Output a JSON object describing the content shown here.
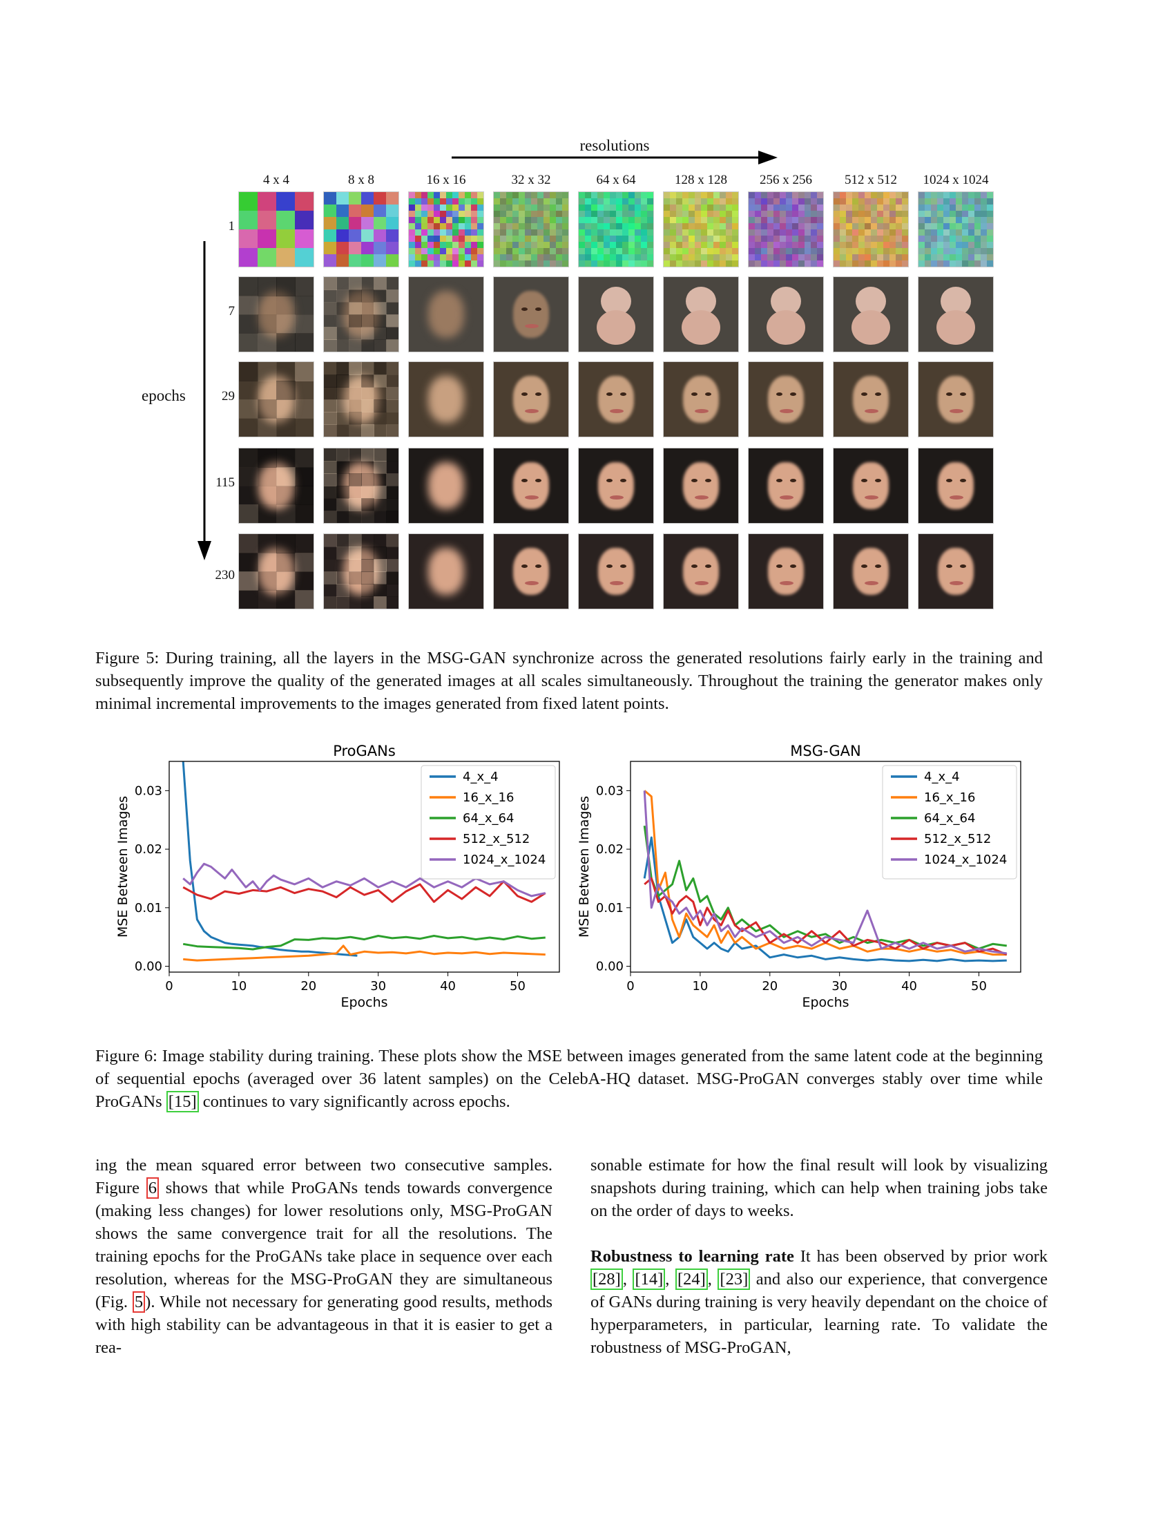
{
  "figure5": {
    "top_label": "resolutions",
    "side_label": "epochs",
    "columns": [
      "4 x 4",
      "8 x 8",
      "16 x 16",
      "32 x 32",
      "64 x 64",
      "128 x 128",
      "256 x 256",
      "512 x 512",
      "1024 x 1024"
    ],
    "rows": [
      "1",
      "7",
      "29",
      "115",
      "230"
    ],
    "caption": "Figure 5: During training, all the layers in the MSG-GAN synchronize across the generated resolutions fairly early in the training and subsequently improve the quality of the generated images at all scales simultaneously. Throughout the training the generator makes only minimal incremental improvements to the images generated from fixed latent points."
  },
  "chart_data": [
    {
      "type": "line",
      "title": "ProGANs",
      "xlabel": "Epochs",
      "ylabel": "MSE Between Images",
      "xlim": [
        0,
        56
      ],
      "ylim": [
        -0.001,
        0.035
      ],
      "xticks": [
        0,
        10,
        20,
        30,
        40,
        50
      ],
      "yticks": [
        0.0,
        0.01,
        0.02,
        0.03
      ],
      "ytick_labels": [
        "0.00",
        "0.01",
        "0.02",
        "0.03"
      ],
      "legend_position": "top-right",
      "series": [
        {
          "name": "4_x_4",
          "color": "#1f77b4",
          "x": [
            2,
            3,
            4,
            5,
            6,
            7,
            8,
            9,
            10,
            11,
            12,
            13,
            14,
            15,
            16,
            17,
            18,
            19,
            20,
            21,
            22,
            23,
            24,
            25,
            26,
            27
          ],
          "y": [
            0.035,
            0.018,
            0.008,
            0.006,
            0.005,
            0.0045,
            0.004,
            0.0038,
            0.0037,
            0.0036,
            0.0035,
            0.0033,
            0.0032,
            0.003,
            0.0028,
            0.0027,
            0.0026,
            0.0025,
            0.0025,
            0.0024,
            0.0023,
            0.0022,
            0.0021,
            0.002,
            0.0019,
            0.0018
          ]
        },
        {
          "name": "16_x_16",
          "color": "#ff7f0e",
          "x": [
            2,
            4,
            6,
            8,
            10,
            12,
            14,
            16,
            18,
            20,
            22,
            24,
            25,
            26,
            28,
            30,
            32,
            34,
            36,
            38,
            40,
            42,
            44,
            46,
            48,
            50,
            52,
            54
          ],
          "y": [
            0.0012,
            0.001,
            0.0011,
            0.0012,
            0.0013,
            0.0014,
            0.0015,
            0.0016,
            0.0017,
            0.0018,
            0.002,
            0.0022,
            0.0035,
            0.002,
            0.0025,
            0.0023,
            0.0024,
            0.0022,
            0.0025,
            0.0021,
            0.0023,
            0.0022,
            0.0024,
            0.0021,
            0.0023,
            0.0022,
            0.0021,
            0.002
          ]
        },
        {
          "name": "64_x_64",
          "color": "#2ca02c",
          "x": [
            2,
            4,
            6,
            8,
            10,
            12,
            14,
            16,
            18,
            20,
            22,
            24,
            26,
            28,
            30,
            32,
            34,
            36,
            38,
            40,
            42,
            44,
            46,
            48,
            50,
            52,
            54
          ],
          "y": [
            0.0038,
            0.0034,
            0.0033,
            0.0032,
            0.0031,
            0.0029,
            0.0033,
            0.0035,
            0.0046,
            0.0045,
            0.0048,
            0.0047,
            0.005,
            0.0046,
            0.0052,
            0.0048,
            0.005,
            0.0047,
            0.0052,
            0.0048,
            0.005,
            0.0046,
            0.0049,
            0.0046,
            0.0051,
            0.0047,
            0.0049
          ]
        },
        {
          "name": "512_x_512",
          "color": "#d62728",
          "x": [
            2,
            4,
            6,
            8,
            10,
            12,
            14,
            16,
            18,
            20,
            22,
            24,
            26,
            28,
            30,
            32,
            34,
            36,
            38,
            40,
            42,
            44,
            46,
            48,
            50,
            52,
            54
          ],
          "y": [
            0.0135,
            0.0122,
            0.0115,
            0.0128,
            0.0124,
            0.013,
            0.0128,
            0.0135,
            0.0125,
            0.0132,
            0.0128,
            0.0118,
            0.0135,
            0.0122,
            0.013,
            0.011,
            0.0128,
            0.014,
            0.011,
            0.013,
            0.0115,
            0.0135,
            0.012,
            0.0145,
            0.012,
            0.011,
            0.0125
          ]
        },
        {
          "name": "1024_x_1024",
          "color": "#9467bd",
          "x": [
            2,
            3,
            4,
            5,
            6,
            7,
            8,
            9,
            10,
            11,
            12,
            13,
            14,
            15,
            16,
            18,
            20,
            22,
            24,
            26,
            28,
            30,
            32,
            34,
            36,
            38,
            40,
            42,
            44,
            46,
            48,
            50,
            52,
            54
          ],
          "y": [
            0.015,
            0.014,
            0.016,
            0.0175,
            0.017,
            0.016,
            0.015,
            0.0165,
            0.015,
            0.0135,
            0.0145,
            0.013,
            0.0145,
            0.0155,
            0.0148,
            0.014,
            0.015,
            0.0135,
            0.0145,
            0.0138,
            0.015,
            0.0135,
            0.0145,
            0.0135,
            0.015,
            0.0135,
            0.0145,
            0.0135,
            0.015,
            0.014,
            0.0145,
            0.013,
            0.012,
            0.0125
          ]
        }
      ]
    },
    {
      "type": "line",
      "title": "MSG-GAN",
      "xlabel": "Epochs",
      "ylabel": "MSE Between Images",
      "xlim": [
        0,
        56
      ],
      "ylim": [
        -0.001,
        0.035
      ],
      "xticks": [
        0,
        10,
        20,
        30,
        40,
        50
      ],
      "yticks": [
        0.0,
        0.01,
        0.02,
        0.03
      ],
      "ytick_labels": [
        "0.00",
        "0.01",
        "0.02",
        "0.03"
      ],
      "legend_position": "top-right",
      "series": [
        {
          "name": "4_x_4",
          "color": "#1f77b4",
          "x": [
            2,
            3,
            4,
            5,
            6,
            7,
            8,
            9,
            10,
            11,
            12,
            13,
            14,
            15,
            16,
            18,
            20,
            22,
            24,
            26,
            28,
            30,
            32,
            34,
            36,
            38,
            40,
            42,
            44,
            46,
            48,
            50,
            52,
            54
          ],
          "y": [
            0.015,
            0.022,
            0.012,
            0.008,
            0.004,
            0.005,
            0.008,
            0.005,
            0.004,
            0.003,
            0.004,
            0.003,
            0.0025,
            0.004,
            0.003,
            0.0035,
            0.0015,
            0.002,
            0.0015,
            0.0018,
            0.0012,
            0.0015,
            0.0012,
            0.001,
            0.0012,
            0.001,
            0.0009,
            0.0011,
            0.0009,
            0.0012,
            0.0009,
            0.001,
            0.0009,
            0.001
          ]
        },
        {
          "name": "16_x_16",
          "color": "#ff7f0e",
          "x": [
            2,
            3,
            4,
            5,
            6,
            7,
            8,
            9,
            10,
            11,
            12,
            13,
            14,
            15,
            16,
            18,
            20,
            22,
            24,
            26,
            28,
            30,
            32,
            34,
            36,
            38,
            40,
            42,
            44,
            46,
            48,
            50,
            52,
            54
          ],
          "y": [
            0.03,
            0.029,
            0.013,
            0.016,
            0.008,
            0.005,
            0.009,
            0.007,
            0.006,
            0.005,
            0.007,
            0.004,
            0.006,
            0.004,
            0.005,
            0.003,
            0.004,
            0.003,
            0.0035,
            0.003,
            0.004,
            0.003,
            0.0035,
            0.0025,
            0.003,
            0.003,
            0.0025,
            0.003,
            0.0025,
            0.0028,
            0.0022,
            0.0025,
            0.002,
            0.002
          ]
        },
        {
          "name": "64_x_64",
          "color": "#2ca02c",
          "x": [
            2,
            3,
            4,
            5,
            6,
            7,
            8,
            9,
            10,
            11,
            12,
            13,
            14,
            15,
            16,
            18,
            20,
            22,
            24,
            26,
            28,
            30,
            32,
            34,
            36,
            38,
            40,
            42,
            44,
            46,
            48,
            50,
            52,
            54
          ],
          "y": [
            0.024,
            0.015,
            0.012,
            0.013,
            0.014,
            0.018,
            0.013,
            0.015,
            0.011,
            0.012,
            0.009,
            0.008,
            0.01,
            0.007,
            0.008,
            0.006,
            0.007,
            0.005,
            0.006,
            0.005,
            0.0055,
            0.004,
            0.005,
            0.004,
            0.0045,
            0.004,
            0.0045,
            0.0035,
            0.004,
            0.0035,
            0.004,
            0.003,
            0.0038,
            0.0035
          ]
        },
        {
          "name": "512_x_512",
          "color": "#d62728",
          "x": [
            2,
            3,
            4,
            5,
            6,
            7,
            8,
            9,
            10,
            11,
            12,
            13,
            14,
            15,
            16,
            18,
            20,
            22,
            24,
            26,
            28,
            30,
            32,
            34,
            36,
            38,
            40,
            42,
            44,
            46,
            48,
            50,
            52,
            54
          ],
          "y": [
            0.014,
            0.015,
            0.011,
            0.012,
            0.009,
            0.011,
            0.012,
            0.011,
            0.007,
            0.01,
            0.008,
            0.007,
            0.0095,
            0.007,
            0.006,
            0.0075,
            0.004,
            0.0055,
            0.004,
            0.006,
            0.004,
            0.006,
            0.0035,
            0.0045,
            0.004,
            0.003,
            0.0045,
            0.003,
            0.004,
            0.0035,
            0.004,
            0.0025,
            0.003,
            0.002
          ]
        },
        {
          "name": "1024_x_1024",
          "color": "#9467bd",
          "x": [
            2,
            3,
            4,
            5,
            6,
            7,
            8,
            9,
            10,
            11,
            12,
            13,
            14,
            15,
            16,
            18,
            20,
            22,
            24,
            26,
            28,
            30,
            32,
            34,
            36,
            38,
            40,
            42,
            44,
            46,
            48,
            50,
            52,
            54
          ],
          "y": [
            0.03,
            0.01,
            0.014,
            0.012,
            0.011,
            0.009,
            0.01,
            0.008,
            0.0095,
            0.007,
            0.009,
            0.006,
            0.007,
            0.005,
            0.0065,
            0.005,
            0.006,
            0.004,
            0.005,
            0.0035,
            0.005,
            0.0045,
            0.004,
            0.0095,
            0.003,
            0.004,
            0.003,
            0.004,
            0.003,
            0.0035,
            0.0025,
            0.003,
            0.0025,
            0.0022
          ]
        }
      ]
    }
  ],
  "figure6": {
    "caption_prefix": "Figure 6: Image stability during training. These plots show the MSE between images generated from the same latent code at the beginning of sequential epochs (averaged over 36 latent samples) on the CelebA-HQ dataset. MSG-ProGAN converges stably over time while ProGANs ",
    "caption_ref": "[15]",
    "caption_suffix": " continues to vary significantly across epochs."
  },
  "body": {
    "left": {
      "t1": "ing the mean squared error between two consecutive samples. Figure ",
      "r1": "6",
      "t2": " shows that while ProGANs tends towards convergence (making less changes) for lower resolutions only, MSG-ProGAN shows the same convergence trait for all the resolutions. The training epochs for the ProGANs take place in sequence over each resolution, whereas for the MSG-ProGAN they are simultaneous (Fig. ",
      "r2": "5",
      "t3": "). While not necessary for generating good results, methods with high stability can be advantageous in that it is easier to get a rea-"
    },
    "right": {
      "p1": "sonable estimate for how the final result will look by visualizing snapshots during training, which can help when training jobs take on the order of days to weeks.",
      "heading": "Robustness to learning rate",
      "t1": " It has been observed by prior work ",
      "refs": [
        "[28]",
        "[14]",
        "[24]",
        "[23]"
      ],
      "t2": " and also our experience, that convergence of GANs during training is very heavily dependant on the choice of hyperparameters, in particular, learning rate. To validate the robustness of MSG-ProGAN,"
    }
  }
}
